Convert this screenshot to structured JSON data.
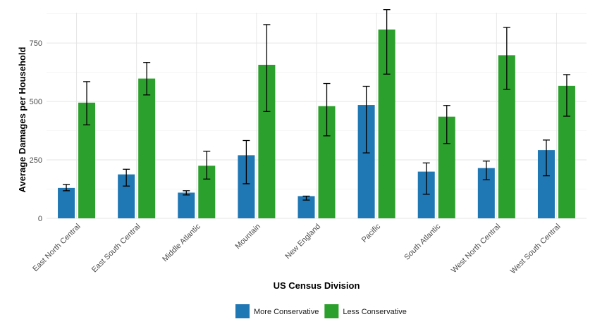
{
  "chart_data": {
    "type": "bar",
    "xlabel": "US Census Division",
    "ylabel": "Average Damages per Household",
    "ylim": [
      0,
      880
    ],
    "yticks": [
      0,
      250,
      500,
      750
    ],
    "grid": true,
    "legend_position": "bottom",
    "categories": [
      "East North Central",
      "East South Central",
      "Middle Atlantic",
      "Mountain",
      "New England",
      "Pacific",
      "South Atlantic",
      "West North Central",
      "West South Central"
    ],
    "series": [
      {
        "name": "More Conservative",
        "color": "#1f77b4",
        "values": [
          130,
          188,
          110,
          270,
          95,
          485,
          200,
          215,
          292
        ],
        "error_low": [
          118,
          138,
          100,
          148,
          78,
          280,
          103,
          165,
          182
        ],
        "error_high": [
          145,
          210,
          118,
          333,
          95,
          565,
          237,
          245,
          335
        ]
      },
      {
        "name": "Less Conservative",
        "color": "#2ca02c",
        "values": [
          495,
          598,
          225,
          657,
          480,
          808,
          435,
          698,
          567
        ],
        "error_low": [
          400,
          528,
          168,
          457,
          353,
          617,
          320,
          552,
          437
        ],
        "error_high": [
          585,
          667,
          287,
          829,
          577,
          893,
          483,
          817,
          615
        ]
      }
    ]
  }
}
